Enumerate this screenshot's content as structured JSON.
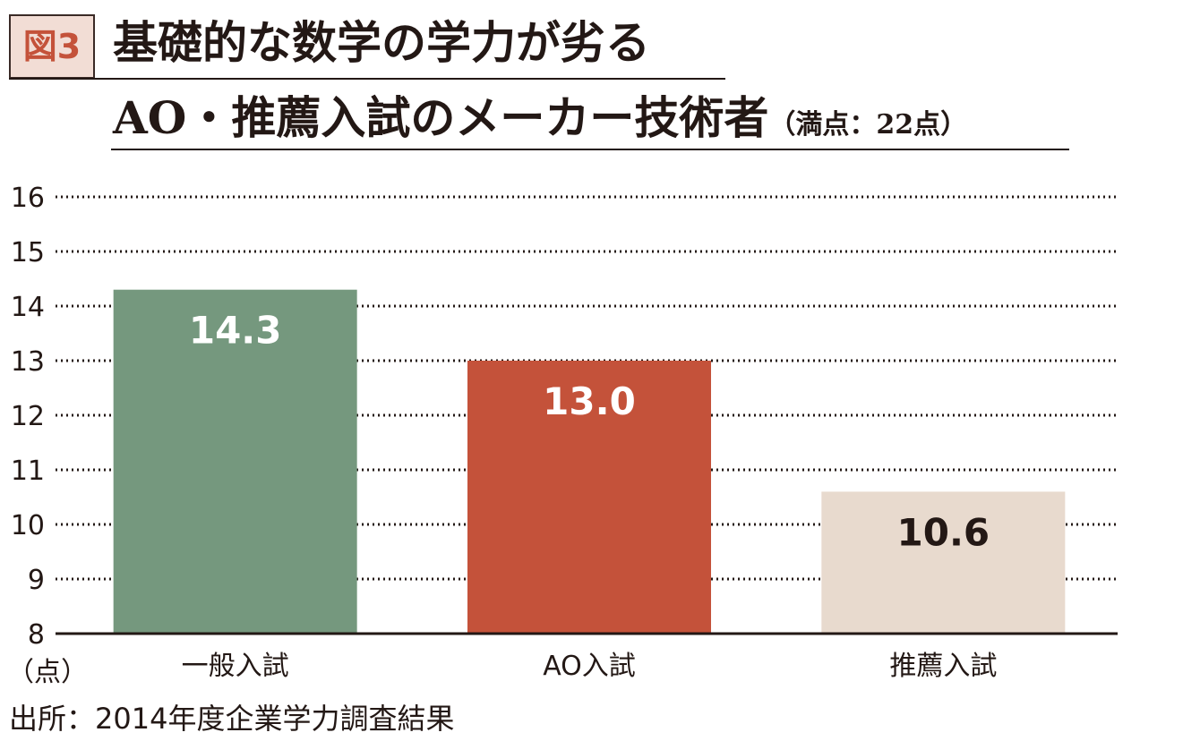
{
  "figure_label": "図3",
  "title": {
    "line1": "基礎的な数学の学力が劣る",
    "line2_main": "AO・推薦入試のメーカー技術者",
    "line2_note": "（満点：22点）"
  },
  "unit_label": "（点）",
  "source": "出所：2014年度企業学力調査結果",
  "chart_data": {
    "type": "bar",
    "categories": [
      "一般入試",
      "AO入試",
      "推薦入試"
    ],
    "values": [
      14.3,
      13.0,
      10.6
    ],
    "value_labels": [
      "14.3",
      "13.0",
      "10.6"
    ],
    "colors": [
      "#75987e",
      "#c4523a",
      "#e8dace"
    ],
    "label_colors": [
      "#ffffff",
      "#ffffff",
      "#231815"
    ],
    "ylim": [
      8,
      16
    ],
    "yticks": [
      8,
      9,
      10,
      11,
      12,
      13,
      14,
      15,
      16
    ],
    "grid": true
  }
}
